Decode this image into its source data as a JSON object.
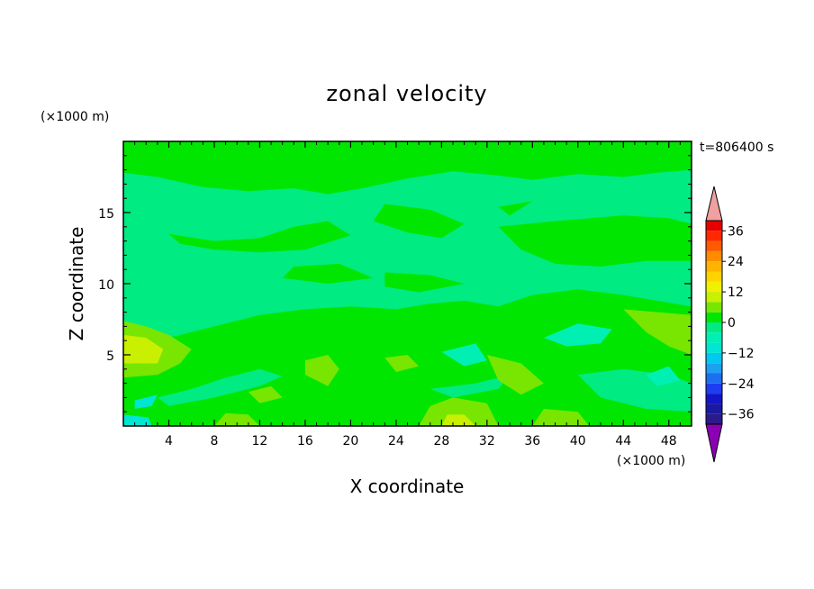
{
  "chart_data": {
    "type": "heatmap",
    "title": "zonal velocity",
    "xlabel": "X coordinate",
    "ylabel": "Z coordinate",
    "x_unit": "(×1000 m)",
    "y_unit": "(×1000 m)",
    "time_label": "t=806400 s",
    "xlim": [
      0,
      50
    ],
    "ylim": [
      0,
      20
    ],
    "x_ticks": [
      4,
      8,
      12,
      16,
      20,
      24,
      28,
      32,
      36,
      40,
      44,
      48
    ],
    "y_ticks": [
      5,
      10,
      15
    ],
    "colorbar": {
      "levels": [
        -40,
        -36,
        -32,
        -28,
        -24,
        -20,
        -16,
        -12,
        -8,
        -4,
        0,
        4,
        8,
        12,
        16,
        20,
        24,
        28,
        32,
        36,
        40
      ],
      "labels": [
        36,
        24,
        12,
        0,
        -12,
        -24,
        -36
      ],
      "colors": [
        "#2a1a8a",
        "#1a1aa0",
        "#1414c8",
        "#1e3cf0",
        "#1e6ef0",
        "#1ea0f0",
        "#00c8f0",
        "#00e6d2",
        "#00f0b4",
        "#00eb82",
        "#00e600",
        "#78e600",
        "#c8f000",
        "#f0f000",
        "#ffd200",
        "#ffb400",
        "#ff8c00",
        "#ff5a00",
        "#ff2800",
        "#e60000"
      ],
      "over_color": "#f0a0a0",
      "under_color": "#8c00b4"
    },
    "regions": [
      {
        "value": -2,
        "points": [
          [
            0,
            0
          ],
          [
            50,
            0
          ],
          [
            50,
            20
          ],
          [
            0,
            20
          ]
        ]
      },
      {
        "value": 2,
        "points": [
          [
            0,
            6.5
          ],
          [
            3,
            6
          ],
          [
            6,
            6.6
          ],
          [
            9,
            7.2
          ],
          [
            12,
            7.8
          ],
          [
            16,
            8.2
          ],
          [
            20,
            8.4
          ],
          [
            24,
            8.2
          ],
          [
            27,
            8.6
          ],
          [
            30,
            8.8
          ],
          [
            33,
            8.4
          ],
          [
            36,
            9.2
          ],
          [
            40,
            9.6
          ],
          [
            44,
            9.2
          ],
          [
            47,
            8.8
          ],
          [
            50,
            8.4
          ],
          [
            50,
            0
          ],
          [
            0,
            0
          ]
        ]
      },
      {
        "value": 2,
        "points": [
          [
            0,
            17.8
          ],
          [
            3,
            17.5
          ],
          [
            7,
            16.8
          ],
          [
            11,
            16.5
          ],
          [
            15,
            16.7
          ],
          [
            18,
            16.3
          ],
          [
            21,
            16.7
          ],
          [
            25,
            17.4
          ],
          [
            29,
            17.9
          ],
          [
            33,
            17.6
          ],
          [
            36,
            17.3
          ],
          [
            40,
            17.7
          ],
          [
            44,
            17.5
          ],
          [
            47,
            17.8
          ],
          [
            50,
            18
          ],
          [
            50,
            20
          ],
          [
            0,
            20
          ]
        ]
      },
      {
        "value": 2,
        "points": [
          [
            4,
            13.5
          ],
          [
            8,
            13
          ],
          [
            12,
            13.2
          ],
          [
            15,
            14
          ],
          [
            18,
            14.4
          ],
          [
            20,
            13.4
          ],
          [
            16,
            12.4
          ],
          [
            12,
            12.2
          ],
          [
            8,
            12.4
          ],
          [
            5,
            12.8
          ]
        ]
      },
      {
        "value": 2,
        "points": [
          [
            23,
            15.6
          ],
          [
            27,
            15.2
          ],
          [
            30,
            14.2
          ],
          [
            28,
            13.2
          ],
          [
            25,
            13.6
          ],
          [
            22,
            14.4
          ]
        ]
      },
      {
        "value": 2,
        "points": [
          [
            33,
            14
          ],
          [
            38,
            14.4
          ],
          [
            44,
            14.8
          ],
          [
            48,
            14.6
          ],
          [
            50,
            14.2
          ],
          [
            50,
            11.6
          ],
          [
            46,
            11.6
          ],
          [
            42,
            11.2
          ],
          [
            38,
            11.4
          ],
          [
            35,
            12.4
          ]
        ]
      },
      {
        "value": 2,
        "points": [
          [
            15,
            11.2
          ],
          [
            19,
            11.4
          ],
          [
            22,
            10.4
          ],
          [
            18,
            10
          ],
          [
            14,
            10.4
          ]
        ]
      },
      {
        "value": 2,
        "points": [
          [
            23,
            10.8
          ],
          [
            27,
            10.6
          ],
          [
            30,
            10
          ],
          [
            26,
            9.4
          ],
          [
            23,
            9.8
          ]
        ]
      },
      {
        "value": 2,
        "points": [
          [
            33,
            15.4
          ],
          [
            36,
            15.8
          ],
          [
            34,
            14.8
          ]
        ]
      },
      {
        "value": -2,
        "points": [
          [
            3,
            2
          ],
          [
            6,
            2.6
          ],
          [
            9,
            3.4
          ],
          [
            12,
            4
          ],
          [
            14,
            3.5
          ],
          [
            12,
            2.8
          ],
          [
            8,
            2
          ],
          [
            4,
            1.4
          ]
        ]
      },
      {
        "value": -2,
        "points": [
          [
            27,
            2.6
          ],
          [
            31,
            3
          ],
          [
            34,
            3.6
          ],
          [
            33,
            2.6
          ],
          [
            29,
            2
          ]
        ]
      },
      {
        "value": -2,
        "points": [
          [
            40,
            3.6
          ],
          [
            44,
            4
          ],
          [
            48,
            3.6
          ],
          [
            50,
            3
          ],
          [
            50,
            1
          ],
          [
            46,
            1.2
          ],
          [
            42,
            2
          ]
        ]
      },
      {
        "value": -6,
        "points": [
          [
            37,
            6.2
          ],
          [
            40,
            7.2
          ],
          [
            43,
            6.8
          ],
          [
            42,
            5.8
          ],
          [
            39,
            5.6
          ]
        ]
      },
      {
        "value": -6,
        "points": [
          [
            28,
            5.2
          ],
          [
            31,
            5.8
          ],
          [
            32,
            4.6
          ],
          [
            30,
            4.2
          ]
        ]
      },
      {
        "value": -6,
        "points": [
          [
            46,
            3.6
          ],
          [
            48,
            4.2
          ],
          [
            49,
            3.2
          ],
          [
            47,
            2.8
          ]
        ]
      },
      {
        "value": -10,
        "points": [
          [
            0,
            0
          ],
          [
            2.5,
            0
          ],
          [
            2.2,
            0.6
          ],
          [
            0,
            0.8
          ]
        ]
      },
      {
        "value": -10,
        "points": [
          [
            1,
            1.8
          ],
          [
            3,
            2.2
          ],
          [
            2.5,
            1.4
          ],
          [
            1,
            1.2
          ]
        ]
      },
      {
        "value": 6,
        "points": [
          [
            0,
            7.4
          ],
          [
            2,
            7
          ],
          [
            4,
            6.4
          ],
          [
            6,
            5.4
          ],
          [
            5,
            4.4
          ],
          [
            3,
            3.6
          ],
          [
            0,
            3.4
          ]
        ]
      },
      {
        "value": 6,
        "points": [
          [
            44,
            8.2
          ],
          [
            47,
            8
          ],
          [
            50,
            7.8
          ],
          [
            50,
            5
          ],
          [
            48,
            5.6
          ],
          [
            46,
            6.6
          ]
        ]
      },
      {
        "value": 6,
        "points": [
          [
            32,
            5
          ],
          [
            35,
            4.4
          ],
          [
            37,
            3
          ],
          [
            35,
            2.2
          ],
          [
            33,
            3.2
          ]
        ]
      },
      {
        "value": 6,
        "points": [
          [
            23,
            4.8
          ],
          [
            25,
            5
          ],
          [
            26,
            4.2
          ],
          [
            24,
            3.8
          ]
        ]
      },
      {
        "value": 6,
        "points": [
          [
            16,
            4.6
          ],
          [
            18,
            5
          ],
          [
            19,
            4
          ],
          [
            18,
            2.8
          ],
          [
            16,
            3.6
          ]
        ]
      },
      {
        "value": 6,
        "points": [
          [
            26,
            0
          ],
          [
            33,
            0
          ],
          [
            32,
            1.6
          ],
          [
            29,
            2
          ],
          [
            27,
            1.4
          ]
        ]
      },
      {
        "value": 6,
        "points": [
          [
            8,
            0
          ],
          [
            12,
            0
          ],
          [
            11,
            0.8
          ],
          [
            9,
            0.9
          ]
        ]
      },
      {
        "value": 6,
        "points": [
          [
            36,
            0
          ],
          [
            41,
            0
          ],
          [
            40,
            1
          ],
          [
            37,
            1.2
          ]
        ]
      },
      {
        "value": 6,
        "points": [
          [
            11,
            2.4
          ],
          [
            13,
            2.8
          ],
          [
            14,
            2
          ],
          [
            12,
            1.6
          ]
        ]
      },
      {
        "value": 10,
        "points": [
          [
            0,
            6.4
          ],
          [
            2,
            6.2
          ],
          [
            3.5,
            5.4
          ],
          [
            3,
            4.4
          ],
          [
            0,
            4.4
          ]
        ]
      },
      {
        "value": 10,
        "points": [
          [
            28,
            0
          ],
          [
            31,
            0
          ],
          [
            30,
            0.8
          ],
          [
            28.5,
            0.8
          ]
        ]
      }
    ]
  }
}
